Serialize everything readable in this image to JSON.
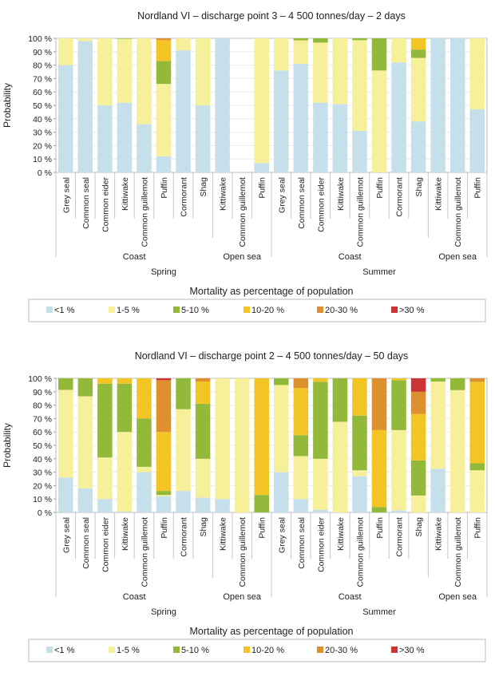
{
  "chart_data": [
    {
      "type": "bar",
      "stacked": true,
      "title": "Nordland VI – discharge point 3 – 4 500 tonnes/day – 2 days",
      "ylabel": "Probability",
      "legend_title": "Mortality as percentage of population",
      "legend_position": "bottom",
      "ylim": [
        0,
        100
      ],
      "yticks": [
        "0 %",
        "10 %",
        "20 %",
        "30 %",
        "40 %",
        "50 %",
        "60 %",
        "70 %",
        "80 %",
        "90 %",
        "100 %"
      ],
      "grid": true,
      "categories": [
        "Grey seal",
        "Common seal",
        "Common eider",
        "Kittiwake",
        "Common guillemot",
        "Puffin",
        "Cormorant",
        "Shag",
        "Kittiwake",
        "Common guillemot",
        "Puffin",
        "Grey seal",
        "Common seal",
        "Common eider",
        "Kittiwake",
        "Common guillemot",
        "Puffin",
        "Cormorant",
        "Shag",
        "Kittiwake",
        "Common guillemot",
        "Puffin"
      ],
      "habitat_groups": [
        {
          "label": "Coast",
          "count": 8
        },
        {
          "label": "Open sea",
          "count": 3
        },
        {
          "label": "Coast",
          "count": 8
        },
        {
          "label": "Open sea",
          "count": 3
        }
      ],
      "season_groups": [
        {
          "label": "Spring",
          "count": 11
        },
        {
          "label": "Summer",
          "count": 11
        }
      ],
      "series": [
        {
          "name": "<1 %",
          "color": "#c5e0ea",
          "values": [
            80,
            98,
            50,
            52,
            36,
            12,
            91,
            50,
            100,
            0,
            7,
            76,
            81,
            52,
            51,
            31,
            0,
            82,
            38,
            100,
            100,
            47
          ]
        },
        {
          "name": "1-5 %",
          "color": "#f7f09a",
          "values": [
            20,
            2,
            50,
            47.6,
            64,
            54,
            9,
            50,
            0,
            0,
            93,
            24,
            17.5,
            44.8,
            49,
            67.6,
            76,
            18,
            47.4,
            0,
            0,
            53
          ]
        },
        {
          "name": "5-10 %",
          "color": "#93b93a",
          "values": [
            0,
            0,
            0,
            0.4,
            0,
            17,
            0,
            0,
            0,
            0,
            0,
            0,
            1.5,
            3.2,
            0,
            1.4,
            24,
            0,
            6.2,
            0,
            0,
            0
          ]
        },
        {
          "name": "10-20 %",
          "color": "#f2c525",
          "values": [
            0,
            0,
            0,
            0,
            0,
            15.6,
            0,
            0,
            0,
            0,
            0,
            0,
            0,
            0,
            0,
            0,
            0,
            0,
            8.4,
            0,
            0,
            0
          ]
        },
        {
          "name": "20-30 %",
          "color": "#de8f2e",
          "values": [
            0,
            0,
            0,
            0,
            0,
            1.4,
            0,
            0,
            0,
            0,
            0,
            0,
            0,
            0,
            0,
            0,
            0,
            0,
            0,
            0,
            0,
            0
          ]
        },
        {
          "name": ">30 %",
          "color": "#cc3333",
          "values": [
            0,
            0,
            0,
            0,
            0,
            0,
            0,
            0,
            0,
            0,
            0,
            0,
            0,
            0,
            0,
            0,
            0,
            0,
            0,
            0,
            0,
            0
          ]
        }
      ]
    },
    {
      "type": "bar",
      "stacked": true,
      "title": "Nordland VI – discharge point 2 – 4 500 tonnes/day – 50 days",
      "ylabel": "Probability",
      "legend_title": "Mortality as percentage of population",
      "legend_position": "bottom",
      "ylim": [
        0,
        100
      ],
      "yticks": [
        "0 %",
        "10 %",
        "20 %",
        "30 %",
        "40 %",
        "50 %",
        "60 %",
        "70 %",
        "80 %",
        "90 %",
        "100 %"
      ],
      "grid": true,
      "categories": [
        "Grey seal",
        "Common seal",
        "Common eider",
        "Kittiwake",
        "Common guillemot",
        "Puffin",
        "Cormorant",
        "Shag",
        "Kittiwake",
        "Common guillemot",
        "Puffin",
        "Grey seal",
        "Common seal",
        "Common eider",
        "Kittiwake",
        "Common guillemot",
        "Puffin",
        "Cormorant",
        "Shag",
        "Kittiwake",
        "Common guillemot",
        "Puffin"
      ],
      "habitat_groups": [
        {
          "label": "Coast",
          "count": 8
        },
        {
          "label": "Open sea",
          "count": 3
        },
        {
          "label": "Coast",
          "count": 8
        },
        {
          "label": "Open sea",
          "count": 3
        }
      ],
      "season_groups": [
        {
          "label": "Spring",
          "count": 11
        },
        {
          "label": "Summer",
          "count": 11
        }
      ],
      "series": [
        {
          "name": "<1 %",
          "color": "#c5e0ea",
          "values": [
            26,
            18,
            10,
            0.6,
            30,
            12,
            16,
            11,
            10,
            0,
            0,
            30,
            10,
            2,
            0,
            27,
            0,
            1.6,
            0,
            32.6,
            0,
            0
          ]
        },
        {
          "name": "1-5 %",
          "color": "#f7f09a",
          "values": [
            65.4,
            68.6,
            31,
            59.4,
            4,
            1,
            61,
            29,
            90,
            100,
            0,
            65,
            32,
            38,
            67.6,
            4.4,
            0,
            59.8,
            12.6,
            65,
            91.2,
            31.4
          ]
        },
        {
          "name": "5-10 %",
          "color": "#93b93a",
          "values": [
            8.6,
            13.4,
            55,
            36,
            36,
            3,
            23,
            41,
            0,
            0,
            13,
            5,
            15.6,
            57.4,
            32.4,
            40.8,
            4,
            37.2,
            26.2,
            2.4,
            8.8,
            5.2
          ]
        },
        {
          "name": "10-20 %",
          "color": "#f2c525",
          "values": [
            0,
            0,
            4,
            4,
            30,
            44,
            0,
            16.6,
            0,
            0,
            87,
            0,
            35.2,
            2.6,
            0,
            27.8,
            57.4,
            1.4,
            34.6,
            0,
            0,
            60.8
          ]
        },
        {
          "name": "20-30 %",
          "color": "#de8f2e",
          "values": [
            0,
            0,
            0,
            0,
            0,
            38.6,
            0,
            2.4,
            0,
            0,
            0,
            0,
            7.2,
            0,
            0,
            0,
            38.6,
            0,
            16.6,
            0,
            0,
            2.6
          ]
        },
        {
          "name": ">30 %",
          "color": "#cc3333",
          "values": [
            0,
            0,
            0,
            0,
            0,
            1.4,
            0,
            0,
            0,
            0,
            0,
            0,
            0,
            0,
            0,
            0,
            0,
            0,
            10,
            0,
            0,
            0
          ]
        }
      ]
    }
  ]
}
